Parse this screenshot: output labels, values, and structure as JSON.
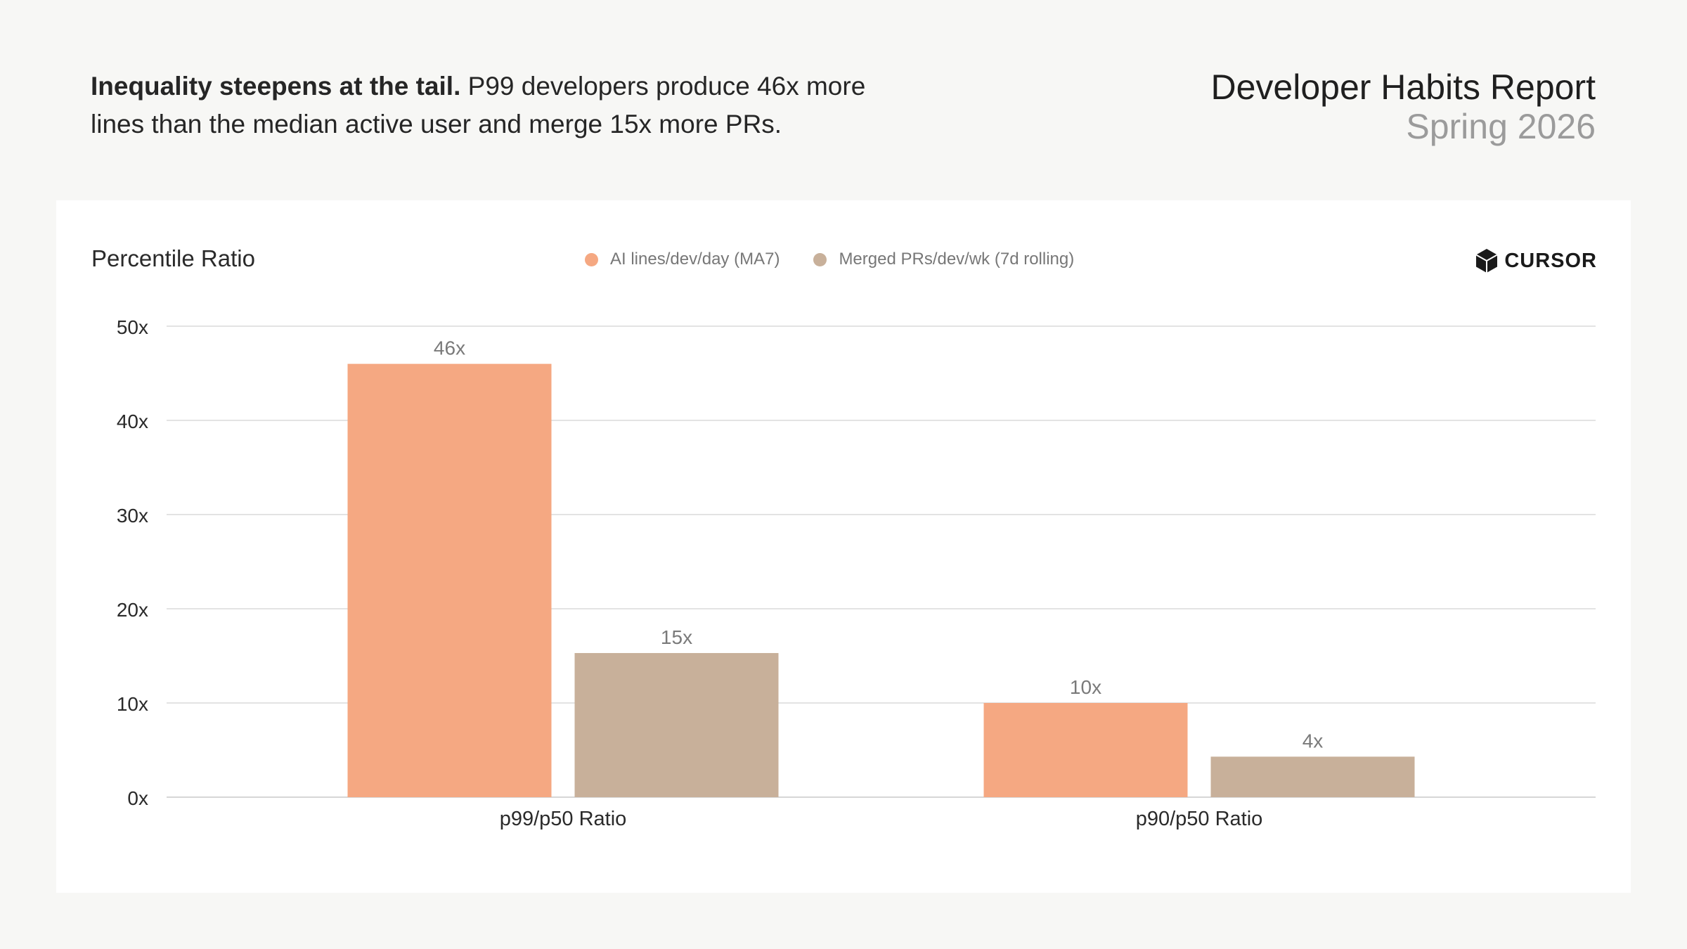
{
  "header": {
    "headline_bold": "Inequality steepens at the tail.",
    "headline_rest": " P99 developers produce 46x more lines than the median active user and merge 15x more PRs.",
    "report_title": "Developer Habits Report",
    "report_subtitle": "Spring 2026"
  },
  "brand": {
    "name": "CURSOR",
    "icon": "cursor-logo-icon"
  },
  "chart_data": {
    "type": "bar",
    "title": "Percentile Ratio",
    "categories": [
      "p99/p50 Ratio",
      "p90/p50 Ratio"
    ],
    "series": [
      {
        "name": "AI lines/dev/day (MA7)",
        "values": [
          46,
          10
        ],
        "labels": [
          "46x",
          "10x"
        ],
        "color": "#f5a882"
      },
      {
        "name": "Merged PRs/dev/wk (7d rolling)",
        "values": [
          15.3,
          4.3
        ],
        "labels": [
          "15x",
          "4x"
        ],
        "color": "#c8b09a"
      }
    ],
    "yticks": [
      0,
      10,
      20,
      30,
      40,
      50
    ],
    "ytick_labels": [
      "0x",
      "10x",
      "20x",
      "30x",
      "40x",
      "50x"
    ],
    "ylim": [
      0,
      50
    ],
    "grid": true,
    "legend": "top-center"
  }
}
